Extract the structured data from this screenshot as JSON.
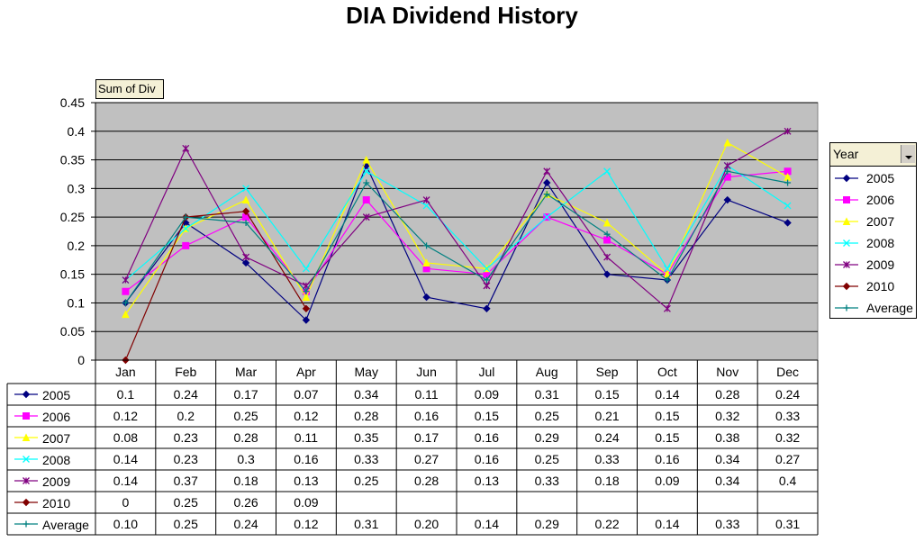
{
  "chart_data": {
    "type": "line",
    "title": "DIA Dividend History",
    "field_button": "Sum of Div",
    "legend_title": "Year",
    "categories": [
      "Jan",
      "Feb",
      "Mar",
      "Apr",
      "May",
      "Jun",
      "Jul",
      "Aug",
      "Sep",
      "Oct",
      "Nov",
      "Dec"
    ],
    "ylim": [
      0,
      0.45
    ],
    "yticks": [
      "0",
      "0.05",
      "0.1",
      "0.15",
      "0.2",
      "0.25",
      "0.3",
      "0.35",
      "0.4",
      "0.45"
    ],
    "grid": true,
    "legend_position": "right",
    "series": [
      {
        "name": "2005",
        "color": "#000080",
        "marker": "diamond",
        "values": [
          0.1,
          0.24,
          0.17,
          0.07,
          0.34,
          0.11,
          0.09,
          0.31,
          0.15,
          0.14,
          0.28,
          0.24
        ],
        "labels": [
          "0.1",
          "0.24",
          "0.17",
          "0.07",
          "0.34",
          "0.11",
          "0.09",
          "0.31",
          "0.15",
          "0.14",
          "0.28",
          "0.24"
        ]
      },
      {
        "name": "2006",
        "color": "#ff00ff",
        "marker": "square",
        "values": [
          0.12,
          0.2,
          0.25,
          0.12,
          0.28,
          0.16,
          0.15,
          0.25,
          0.21,
          0.15,
          0.32,
          0.33
        ],
        "labels": [
          "0.12",
          "0.2",
          "0.25",
          "0.12",
          "0.28",
          "0.16",
          "0.15",
          "0.25",
          "0.21",
          "0.15",
          "0.32",
          "0.33"
        ]
      },
      {
        "name": "2007",
        "color": "#ffff00",
        "marker": "triangle",
        "values": [
          0.08,
          0.23,
          0.28,
          0.11,
          0.35,
          0.17,
          0.16,
          0.29,
          0.24,
          0.15,
          0.38,
          0.32
        ],
        "labels": [
          "0.08",
          "0.23",
          "0.28",
          "0.11",
          "0.35",
          "0.17",
          "0.16",
          "0.29",
          "0.24",
          "0.15",
          "0.38",
          "0.32"
        ]
      },
      {
        "name": "2008",
        "color": "#00ffff",
        "marker": "x",
        "values": [
          0.14,
          0.23,
          0.3,
          0.16,
          0.33,
          0.27,
          0.16,
          0.25,
          0.33,
          0.16,
          0.34,
          0.27
        ],
        "labels": [
          "0.14",
          "0.23",
          "0.3",
          "0.16",
          "0.33",
          "0.27",
          "0.16",
          "0.25",
          "0.33",
          "0.16",
          "0.34",
          "0.27"
        ]
      },
      {
        "name": "2009",
        "color": "#800080",
        "marker": "star",
        "values": [
          0.14,
          0.37,
          0.18,
          0.13,
          0.25,
          0.28,
          0.13,
          0.33,
          0.18,
          0.09,
          0.34,
          0.4
        ],
        "labels": [
          "0.14",
          "0.37",
          "0.18",
          "0.13",
          "0.25",
          "0.28",
          "0.13",
          "0.33",
          "0.18",
          "0.09",
          "0.34",
          "0.4"
        ]
      },
      {
        "name": "2010",
        "color": "#800000",
        "marker": "diamond",
        "values": [
          0,
          0.25,
          0.26,
          0.09,
          null,
          null,
          null,
          null,
          null,
          null,
          null,
          null
        ],
        "labels": [
          "0",
          "0.25",
          "0.26",
          "0.09",
          "",
          "",
          "",
          "",
          "",
          "",
          "",
          ""
        ]
      },
      {
        "name": "Average",
        "color": "#008080",
        "marker": "plus",
        "values": [
          0.1,
          0.25,
          0.24,
          0.12,
          0.31,
          0.2,
          0.14,
          0.29,
          0.22,
          0.14,
          0.33,
          0.31
        ],
        "labels": [
          "0.10",
          "0.25",
          "0.24",
          "0.12",
          "0.31",
          "0.20",
          "0.14",
          "0.29",
          "0.22",
          "0.14",
          "0.33",
          "0.31"
        ]
      }
    ]
  }
}
